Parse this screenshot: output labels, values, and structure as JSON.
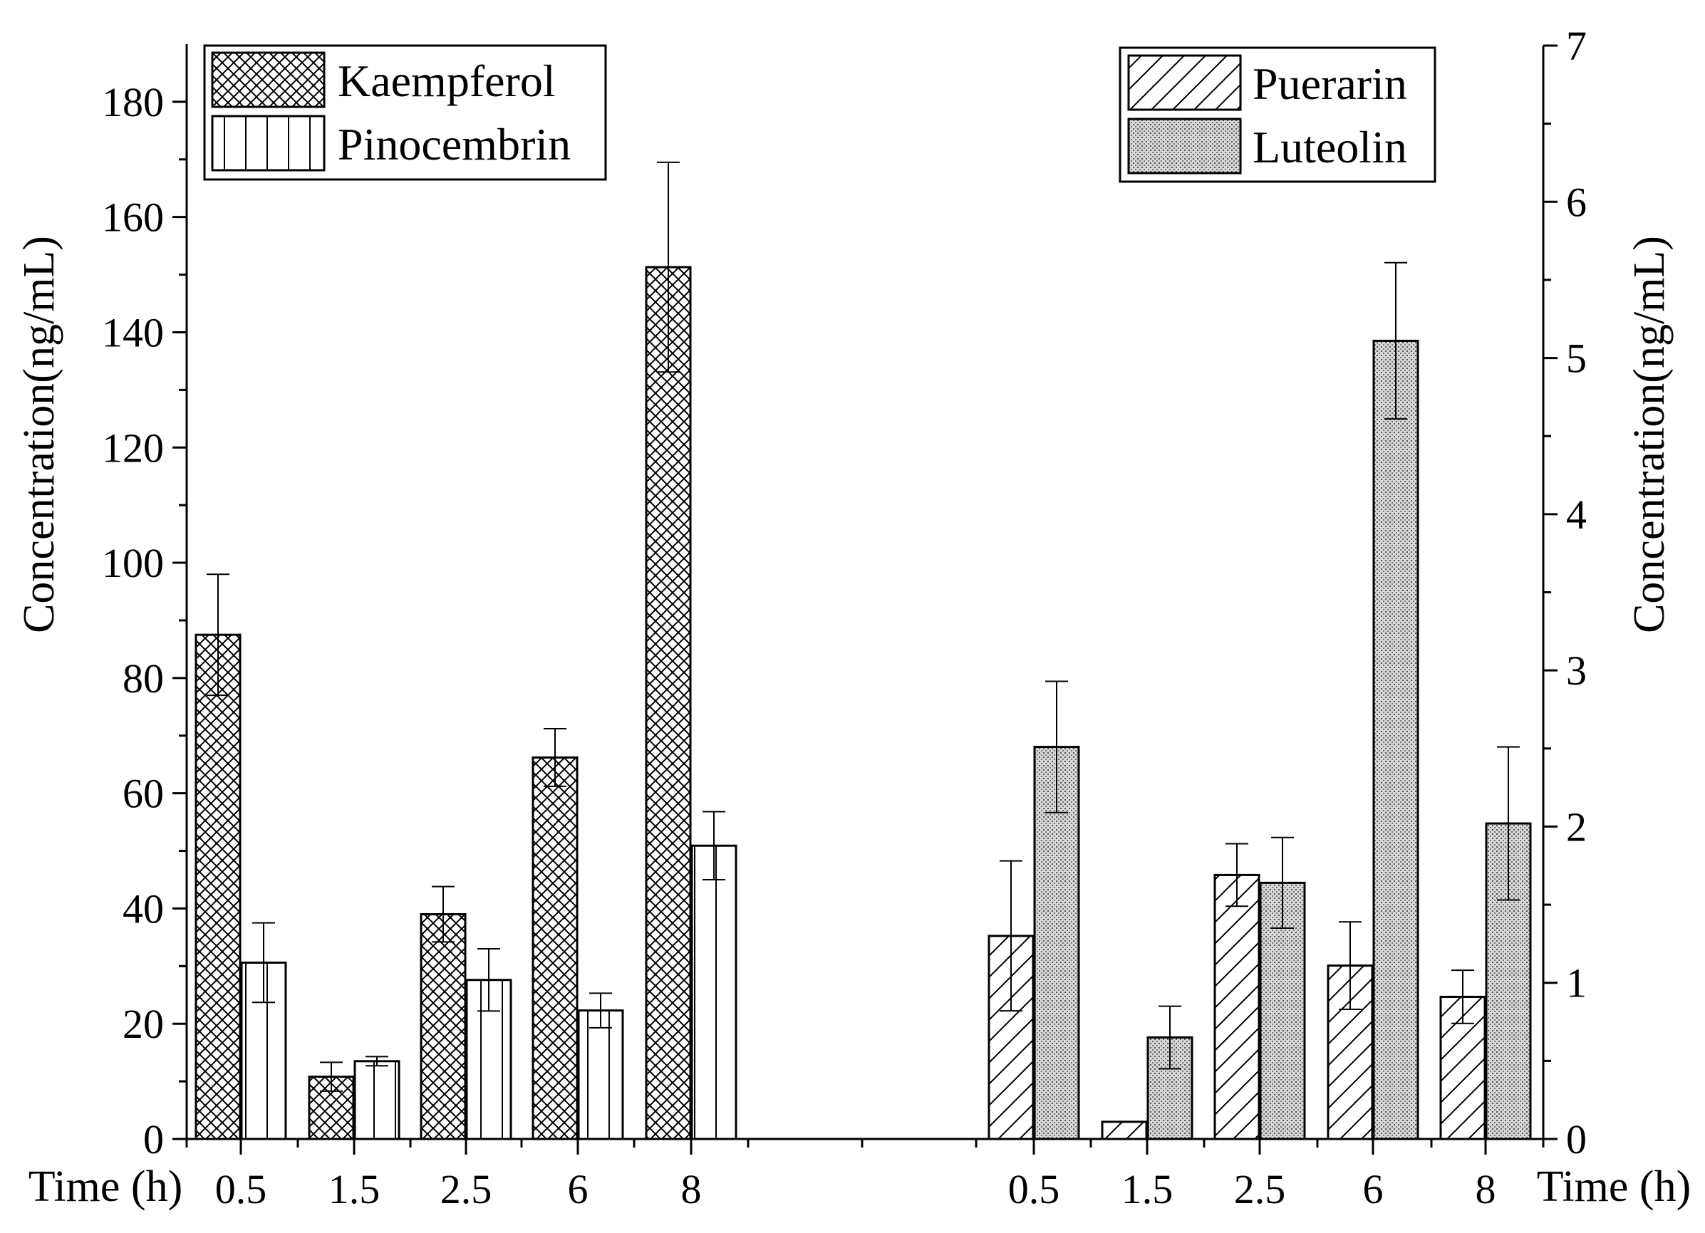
{
  "chart_data": {
    "type": "bar",
    "left_axis": {
      "title": "Concentration(ng/mL)",
      "ylim": [
        0,
        190
      ],
      "ticks": [
        0,
        20,
        40,
        60,
        80,
        100,
        120,
        140,
        160,
        180
      ],
      "tick_labels": [
        "0",
        "20",
        "40",
        "60",
        "80",
        "100",
        "120",
        "140",
        "160",
        "180"
      ],
      "minor_step": 10
    },
    "right_axis": {
      "title": "Concentration(ng/mL)",
      "ylim": [
        0,
        7
      ],
      "ticks": [
        0,
        1,
        2,
        3,
        4,
        5,
        6,
        7
      ],
      "tick_labels": [
        "0",
        "1",
        "2",
        "3",
        "4",
        "5",
        "6",
        "7"
      ],
      "minor_step": 0.5
    },
    "xlabel_left": "Time (h)",
    "xlabel_right": "Time (h)",
    "categories": [
      "0.5",
      "1.5",
      "2.5",
      "6",
      "8"
    ],
    "groups": [
      {
        "axis": "left",
        "categories": [
          "0.5",
          "1.5",
          "2.5",
          "6",
          "8"
        ],
        "series": [
          {
            "name": "Kaempferol",
            "pattern": "crosshatch",
            "values": [
              87.5,
              10.8,
              39.0,
              66.2,
              151.3
            ],
            "errors": [
              10.5,
              2.5,
              4.8,
              5.0,
              18.2
            ]
          },
          {
            "name": "Pinocembrin",
            "pattern": "vertical",
            "values": [
              30.6,
              13.5,
              27.6,
              22.3,
              50.9
            ],
            "errors": [
              6.9,
              0.8,
              5.4,
              3.0,
              5.9
            ]
          }
        ]
      },
      {
        "axis": "right",
        "categories": [
          "0.5",
          "1.5",
          "2.5",
          "6",
          "8"
        ],
        "series": [
          {
            "name": "Puerarin",
            "pattern": "diagonal",
            "values": [
              1.3,
              0.11,
              1.69,
              1.11,
              0.91
            ],
            "errors": [
              0.48,
              0,
              0.2,
              0.28,
              0.17
            ]
          },
          {
            "name": "Luteolin",
            "pattern": "dotted",
            "values": [
              2.51,
              0.65,
              1.64,
              5.11,
              2.02
            ],
            "errors": [
              0.42,
              0.2,
              0.29,
              0.5,
              0.49
            ]
          }
        ]
      }
    ],
    "legends": [
      {
        "position": "top-left",
        "entries": [
          "Kaempferol",
          "Pinocembrin"
        ]
      },
      {
        "position": "top-right",
        "entries": [
          "Puerarin",
          "Luteolin"
        ]
      }
    ],
    "grid": false,
    "colors": {
      "bar_outline": "#000000",
      "dotted_fill": "#bdbdbd",
      "background": "#ffffff"
    }
  }
}
